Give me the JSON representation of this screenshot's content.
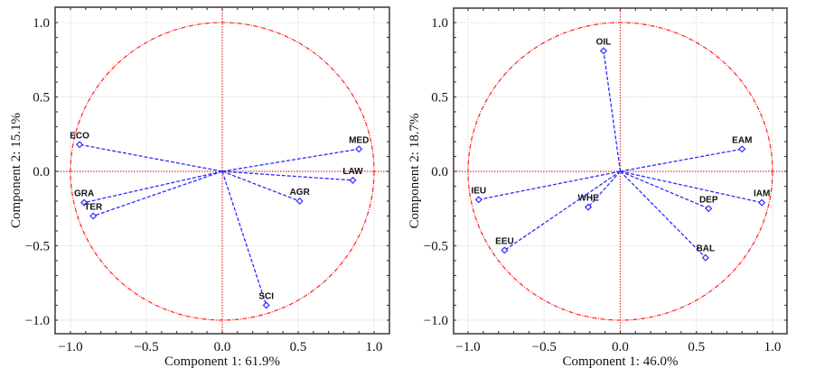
{
  "chart_data": [
    {
      "type": "scatter",
      "subtype": "pca-correlation-circle",
      "title": "",
      "xlabel": "Component 1: 61.9%",
      "ylabel": "Component 2: 15.1%",
      "xlim": [
        -1.1,
        1.1
      ],
      "ylim": [
        -1.1,
        1.1
      ],
      "xticks": [
        "-1.0",
        "-0.5",
        "0.0",
        "0.5",
        "1.0"
      ],
      "yticks": [
        "-1.0",
        "-0.5",
        "0.0",
        "0.5",
        "1.0"
      ],
      "grid": true,
      "unit_circle": true,
      "points": [
        {
          "label": "ECO",
          "x": -0.94,
          "y": 0.18
        },
        {
          "label": "GRA",
          "x": -0.91,
          "y": -0.21
        },
        {
          "label": "TER",
          "x": -0.85,
          "y": -0.3
        },
        {
          "label": "MED",
          "x": 0.9,
          "y": 0.15
        },
        {
          "label": "LAW",
          "x": 0.86,
          "y": -0.06
        },
        {
          "label": "AGR",
          "x": 0.51,
          "y": -0.2
        },
        {
          "label": "SCI",
          "x": 0.29,
          "y": -0.9
        }
      ]
    },
    {
      "type": "scatter",
      "subtype": "pca-correlation-circle",
      "title": "",
      "xlabel": "Component 1: 46.0%",
      "ylabel": "Component 2: 18.7%",
      "xlim": [
        -1.1,
        1.1
      ],
      "ylim": [
        -1.1,
        1.1
      ],
      "xticks": [
        "-1.0",
        "-0.5",
        "0.0",
        "0.5",
        "1.0"
      ],
      "yticks": [
        "-1.0",
        "-0.5",
        "0.0",
        "0.5",
        "1.0"
      ],
      "grid": true,
      "unit_circle": true,
      "points": [
        {
          "label": "OIL",
          "x": -0.11,
          "y": 0.81
        },
        {
          "label": "EAM",
          "x": 0.8,
          "y": 0.15
        },
        {
          "label": "IEU",
          "x": -0.93,
          "y": -0.19
        },
        {
          "label": "WHE",
          "x": -0.21,
          "y": -0.24
        },
        {
          "label": "EEU",
          "x": -0.76,
          "y": -0.53
        },
        {
          "label": "DEP",
          "x": 0.58,
          "y": -0.25
        },
        {
          "label": "IAM",
          "x": 0.93,
          "y": -0.21
        },
        {
          "label": "BAL",
          "x": 0.56,
          "y": -0.58
        }
      ]
    }
  ],
  "colors": {
    "vector": "#2b2bff",
    "circle": "#ff2020",
    "axis_cross": "#e03030",
    "grid": "#d8d8d8",
    "frame": "#444444"
  }
}
